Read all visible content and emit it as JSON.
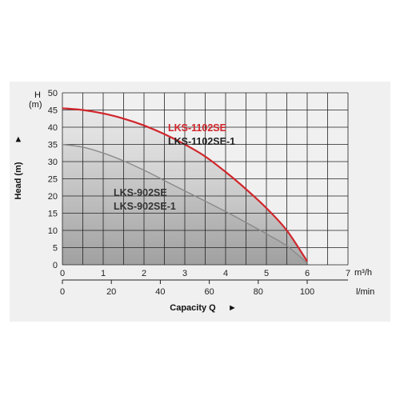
{
  "chart_data": {
    "type": "line",
    "ylabel": "Head (m)",
    "ylabel_arrow": "►",
    "y_top_unit_symbol": "H",
    "y_top_unit": "(m)",
    "xlabel": "Capacity Q",
    "xlabel_arrow": "►",
    "x_primary_unit": "m³/h",
    "x_secondary_unit": "l/min",
    "xlim": [
      0,
      7
    ],
    "ylim": [
      0,
      50
    ],
    "x_ticks": [
      "0",
      "1",
      "2",
      "3",
      "4",
      "5",
      "6",
      "7"
    ],
    "x_secondary_ticks": [
      "0",
      "20",
      "40",
      "60",
      "80",
      "100"
    ],
    "y_ticks": [
      "0",
      "5",
      "10",
      "15",
      "20",
      "25",
      "30",
      "35",
      "40",
      "45",
      "50"
    ],
    "grid": true,
    "series": [
      {
        "name": "LKS-1102SE",
        "name2": "LKS-1102SE-1",
        "color": "#d0262b",
        "label_color": "#d0262b",
        "label2_color": "#222222",
        "x": [
          0,
          0.5,
          1,
          1.5,
          2,
          2.5,
          3,
          3.5,
          4,
          4.5,
          5,
          5.5,
          6
        ],
        "values": [
          45.5,
          45,
          44,
          42.5,
          40.5,
          38,
          35,
          31.5,
          27,
          22,
          16.5,
          10,
          1
        ]
      },
      {
        "name": "LKS-902SE",
        "name2": "LKS-902SE-1",
        "color": "#8a8a8a",
        "label_color": "#333333",
        "label2_color": "#333333",
        "x": [
          0,
          0.5,
          1,
          1.5,
          2,
          2.5,
          3,
          3.5,
          4,
          4.5,
          5,
          5.5,
          6
        ],
        "values": [
          35,
          34.2,
          32.5,
          30.2,
          27.5,
          24.5,
          21.5,
          18.5,
          15.5,
          12.3,
          9,
          5.5,
          0.5
        ]
      }
    ]
  }
}
